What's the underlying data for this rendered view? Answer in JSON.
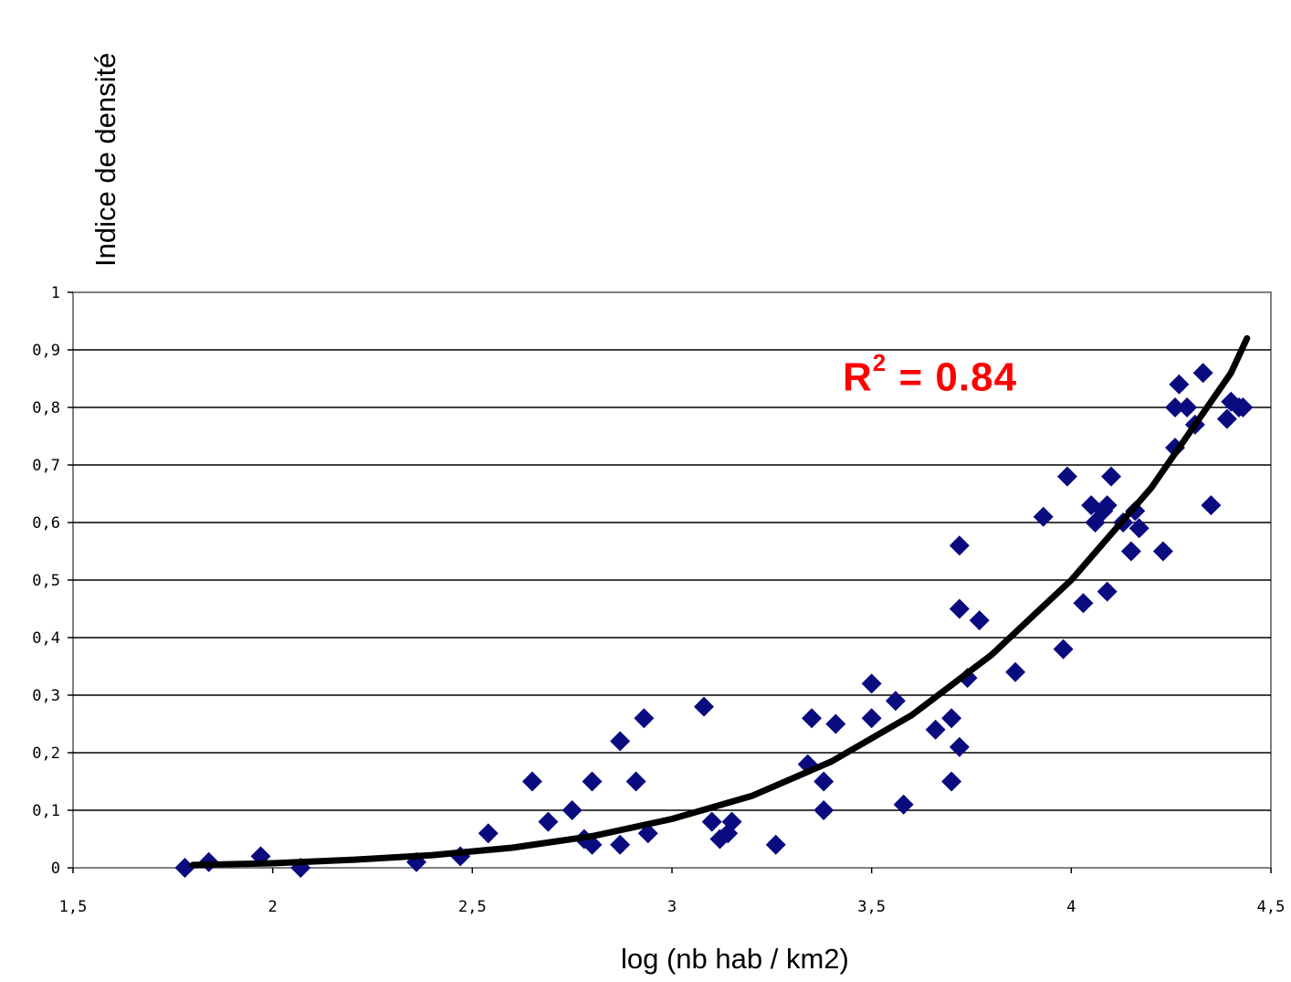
{
  "chart_data": {
    "type": "scatter",
    "ylabel": "Indice de densité",
    "xlabel": "log (nb hab / km2)",
    "annotation": {
      "label": "R",
      "sup": "2",
      "value": "= 0.84"
    },
    "xlim": [
      1.5,
      4.5
    ],
    "ylim": [
      0,
      1
    ],
    "x_ticks": [
      "1,5",
      "2",
      "2,5",
      "3",
      "3,5",
      "4",
      "4,5"
    ],
    "x_tick_values": [
      1.5,
      2,
      2.5,
      3,
      3.5,
      4,
      4.5
    ],
    "y_ticks": [
      "0",
      "0,1",
      "0,2",
      "0,3",
      "0,4",
      "0,5",
      "0,6",
      "0,7",
      "0,8",
      "0,9",
      "1"
    ],
    "y_tick_values": [
      0,
      0.1,
      0.2,
      0.3,
      0.4,
      0.5,
      0.6,
      0.7,
      0.8,
      0.9,
      1
    ],
    "grid": "horizontal",
    "colors": {
      "points": "#0b0b80",
      "trend": "#000000",
      "annotation": "#ff0000",
      "frame": "#808080"
    },
    "series": [
      {
        "marker": "diamond",
        "points": [
          [
            1.78,
            0.0
          ],
          [
            1.84,
            0.01
          ],
          [
            1.97,
            0.02
          ],
          [
            2.07,
            0.0
          ],
          [
            2.36,
            0.01
          ],
          [
            2.47,
            0.02
          ],
          [
            2.54,
            0.06
          ],
          [
            2.65,
            0.15
          ],
          [
            2.69,
            0.08
          ],
          [
            2.75,
            0.1
          ],
          [
            2.78,
            0.05
          ],
          [
            2.8,
            0.04
          ],
          [
            2.8,
            0.15
          ],
          [
            2.87,
            0.22
          ],
          [
            2.87,
            0.04
          ],
          [
            2.91,
            0.15
          ],
          [
            2.93,
            0.26
          ],
          [
            2.94,
            0.06
          ],
          [
            3.08,
            0.28
          ],
          [
            3.1,
            0.08
          ],
          [
            3.12,
            0.05
          ],
          [
            3.14,
            0.06
          ],
          [
            3.15,
            0.08
          ],
          [
            3.26,
            0.04
          ],
          [
            3.34,
            0.18
          ],
          [
            3.35,
            0.26
          ],
          [
            3.38,
            0.1
          ],
          [
            3.38,
            0.15
          ],
          [
            3.41,
            0.25
          ],
          [
            3.5,
            0.32
          ],
          [
            3.5,
            0.26
          ],
          [
            3.56,
            0.29
          ],
          [
            3.58,
            0.11
          ],
          [
            3.66,
            0.24
          ],
          [
            3.7,
            0.15
          ],
          [
            3.7,
            0.26
          ],
          [
            3.72,
            0.21
          ],
          [
            3.72,
            0.56
          ],
          [
            3.72,
            0.45
          ],
          [
            3.74,
            0.33
          ],
          [
            3.77,
            0.43
          ],
          [
            3.86,
            0.34
          ],
          [
            3.93,
            0.61
          ],
          [
            3.98,
            0.38
          ],
          [
            3.99,
            0.68
          ],
          [
            4.03,
            0.46
          ],
          [
            4.05,
            0.63
          ],
          [
            4.06,
            0.6
          ],
          [
            4.08,
            0.62
          ],
          [
            4.09,
            0.48
          ],
          [
            4.09,
            0.63
          ],
          [
            4.1,
            0.68
          ],
          [
            4.13,
            0.6
          ],
          [
            4.15,
            0.55
          ],
          [
            4.16,
            0.62
          ],
          [
            4.17,
            0.59
          ],
          [
            4.23,
            0.55
          ],
          [
            4.26,
            0.73
          ],
          [
            4.26,
            0.8
          ],
          [
            4.27,
            0.84
          ],
          [
            4.29,
            0.8
          ],
          [
            4.31,
            0.77
          ],
          [
            4.33,
            0.86
          ],
          [
            4.35,
            0.63
          ],
          [
            4.39,
            0.78
          ],
          [
            4.4,
            0.81
          ],
          [
            4.42,
            0.8
          ],
          [
            4.43,
            0.8
          ]
        ]
      },
      {
        "marker": "line",
        "points": [
          [
            1.8,
            0.005
          ],
          [
            2.0,
            0.008
          ],
          [
            2.2,
            0.014
          ],
          [
            2.4,
            0.022
          ],
          [
            2.6,
            0.035
          ],
          [
            2.8,
            0.055
          ],
          [
            3.0,
            0.085
          ],
          [
            3.2,
            0.125
          ],
          [
            3.4,
            0.185
          ],
          [
            3.6,
            0.265
          ],
          [
            3.8,
            0.37
          ],
          [
            4.0,
            0.5
          ],
          [
            4.2,
            0.66
          ],
          [
            4.3,
            0.76
          ],
          [
            4.4,
            0.86
          ],
          [
            4.44,
            0.92
          ]
        ]
      }
    ]
  }
}
